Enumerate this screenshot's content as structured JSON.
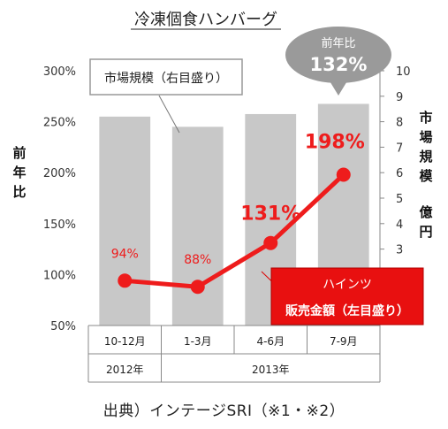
{
  "chart_data": {
    "type": "bar",
    "title": "冷凍個食ハンバーグ",
    "categories": [
      "10-12月",
      "1-3月",
      "4-6月",
      "7-9月"
    ],
    "year_groups": [
      {
        "label": "2012年",
        "span": 1
      },
      {
        "label": "2013年",
        "span": 3
      }
    ],
    "series": [
      {
        "name": "市場規模（右目盛り）",
        "kind": "bar",
        "axis": "right",
        "color": "#c8c8c8",
        "values": [
          8.2,
          7.8,
          8.3,
          8.7
        ]
      },
      {
        "name": "ハインツ販売金額（左目盛り）",
        "kind": "line",
        "axis": "left",
        "color": "#ee1c1c",
        "values": [
          94,
          88,
          131,
          198
        ],
        "labels": [
          "94%",
          "88%",
          "131%",
          "198%"
        ]
      }
    ],
    "left_axis": {
      "label": "前年比",
      "ticks": [
        "50%",
        "100%",
        "150%",
        "200%",
        "250%",
        "300%"
      ],
      "range": [
        50,
        300
      ]
    },
    "right_axis": {
      "label": "市場規模",
      "unit": "億円",
      "ticks": [
        "3",
        "4",
        "5",
        "6",
        "7",
        "8",
        "9",
        "10"
      ],
      "range": [
        0,
        10
      ]
    },
    "callouts": {
      "market": "市場規模（右目盛り）",
      "heinz_line1": "ハインツ",
      "heinz_line2": "販売金額（左目盛り）",
      "bubble_label": "前年比",
      "bubble_value": "132%"
    }
  },
  "source": "出典）インテージSRI（※1・※2）"
}
